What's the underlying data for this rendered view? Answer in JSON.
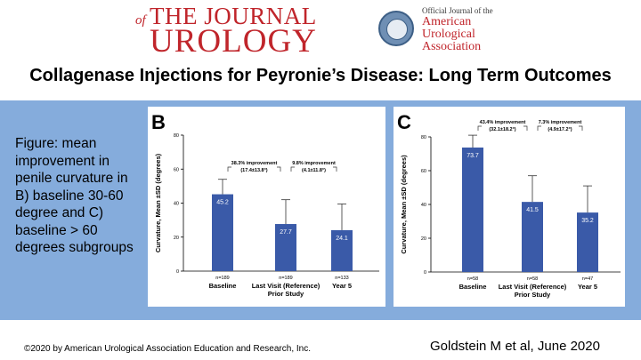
{
  "header": {
    "journal_of": "of",
    "journal_line1": "THE JOURNAL",
    "journal_line2": "UROLOGY",
    "aua_official": "Official Journal of the",
    "aua_name": [
      "American",
      "Urological",
      "Association"
    ]
  },
  "title": "Collagenase Injections for Peyronie’s Disease: Long Term Outcomes",
  "caption": "Figure: mean improvement in penile curvature in B) baseline 30-60 degree and C) baseline > 60 degrees subgroups",
  "footer": {
    "copyright": "©2020 by American Urological Association Education and Research, Inc.",
    "citation": "Goldstein M et al, June 2020"
  },
  "colors": {
    "bar": "#3a5aa8",
    "band": "#85acdc",
    "journal_red": "#c0252b"
  },
  "chart_data": [
    {
      "type": "bar",
      "panel_label": "B",
      "ylabel": "Curvature, Mean ±SD (degrees)",
      "ylim": [
        0,
        80
      ],
      "yticks": [
        "0",
        "20",
        "40",
        "60",
        "80"
      ],
      "categories": [
        "Baseline",
        "Last Visit (Reference)",
        "Year 5"
      ],
      "category_sublabels": [
        "",
        "Prior Study",
        ""
      ],
      "values": [
        45.2,
        27.7,
        24.1
      ],
      "value_labels": [
        "45.2",
        "27.7",
        "24.1"
      ],
      "error_upper": [
        54,
        42,
        39.5
      ],
      "n_labels": [
        "n=189",
        "n=189",
        "n=133"
      ],
      "brackets": [
        {
          "line1": "38.3% improvement",
          "line2": "(17.4±13.8°)"
        },
        {
          "line1": "9.8% improvement",
          "line2": "(4.1±11.8°)"
        }
      ]
    },
    {
      "type": "bar",
      "panel_label": "C",
      "ylabel": "Curvature, Mean ±SD (degrees)",
      "ylim": [
        0,
        80
      ],
      "yticks": [
        "0",
        "20",
        "40",
        "60",
        "80"
      ],
      "categories": [
        "Baseline",
        "Last Visit (Reference)",
        "Year 5"
      ],
      "category_sublabels": [
        "",
        "Prior Study",
        ""
      ],
      "values": [
        73.7,
        41.5,
        35.2
      ],
      "value_labels": [
        "73.7",
        "41.5",
        "35.2"
      ],
      "error_upper": [
        81,
        57,
        51
      ],
      "n_labels": [
        "n=58",
        "n=58",
        "n=47"
      ],
      "brackets": [
        {
          "line1": "43.4% improvement",
          "line2": "(32.1±18.2°)"
        },
        {
          "line1": "7.3% improvement",
          "line2": "(4.9±17.2°)"
        }
      ]
    }
  ]
}
